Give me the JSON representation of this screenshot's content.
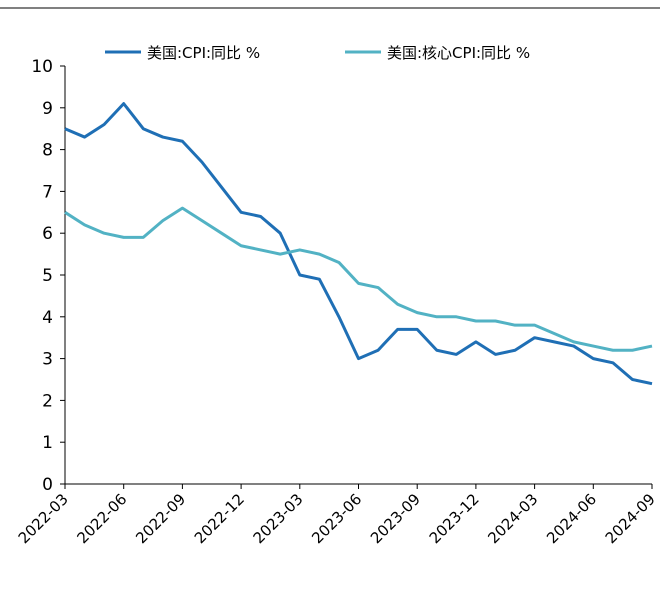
{
  "chart_data": {
    "type": "line",
    "categories": [
      "2022-03",
      null,
      null,
      "2022-06",
      null,
      null,
      "2022-09",
      null,
      null,
      "2022-12",
      null,
      null,
      "2023-03",
      null,
      null,
      "2023-06",
      null,
      null,
      "2023-09",
      null,
      null,
      "2023-12",
      null,
      null,
      "2024-03",
      null,
      null,
      "2024-06",
      null,
      null,
      "2024-09"
    ],
    "series": [
      {
        "name": "美国:CPI:同比 %",
        "color": "#1f6fb5",
        "values": [
          8.5,
          8.3,
          8.6,
          9.1,
          8.5,
          8.3,
          8.2,
          7.7,
          7.1,
          6.5,
          6.4,
          6.0,
          5.0,
          4.9,
          4.0,
          3.0,
          3.2,
          3.7,
          3.7,
          3.2,
          3.1,
          3.4,
          3.1,
          3.2,
          3.5,
          3.4,
          3.3,
          3.0,
          2.9,
          2.5,
          2.4
        ]
      },
      {
        "name": "美国:核心CPI:同比 %",
        "color": "#52b2c4",
        "values": [
          6.5,
          6.2,
          6.0,
          5.9,
          5.9,
          6.3,
          6.6,
          6.3,
          6.0,
          5.7,
          5.6,
          5.5,
          5.6,
          5.5,
          5.3,
          4.8,
          4.7,
          4.3,
          4.1,
          4.0,
          4.0,
          3.9,
          3.9,
          3.8,
          3.8,
          3.6,
          3.4,
          3.3,
          3.2,
          3.2,
          3.3
        ]
      }
    ],
    "ylim": [
      0,
      10
    ],
    "yticks": [
      0,
      1,
      2,
      3,
      4,
      5,
      6,
      7,
      8,
      9,
      10
    ],
    "grid": false,
    "legend": "top"
  }
}
